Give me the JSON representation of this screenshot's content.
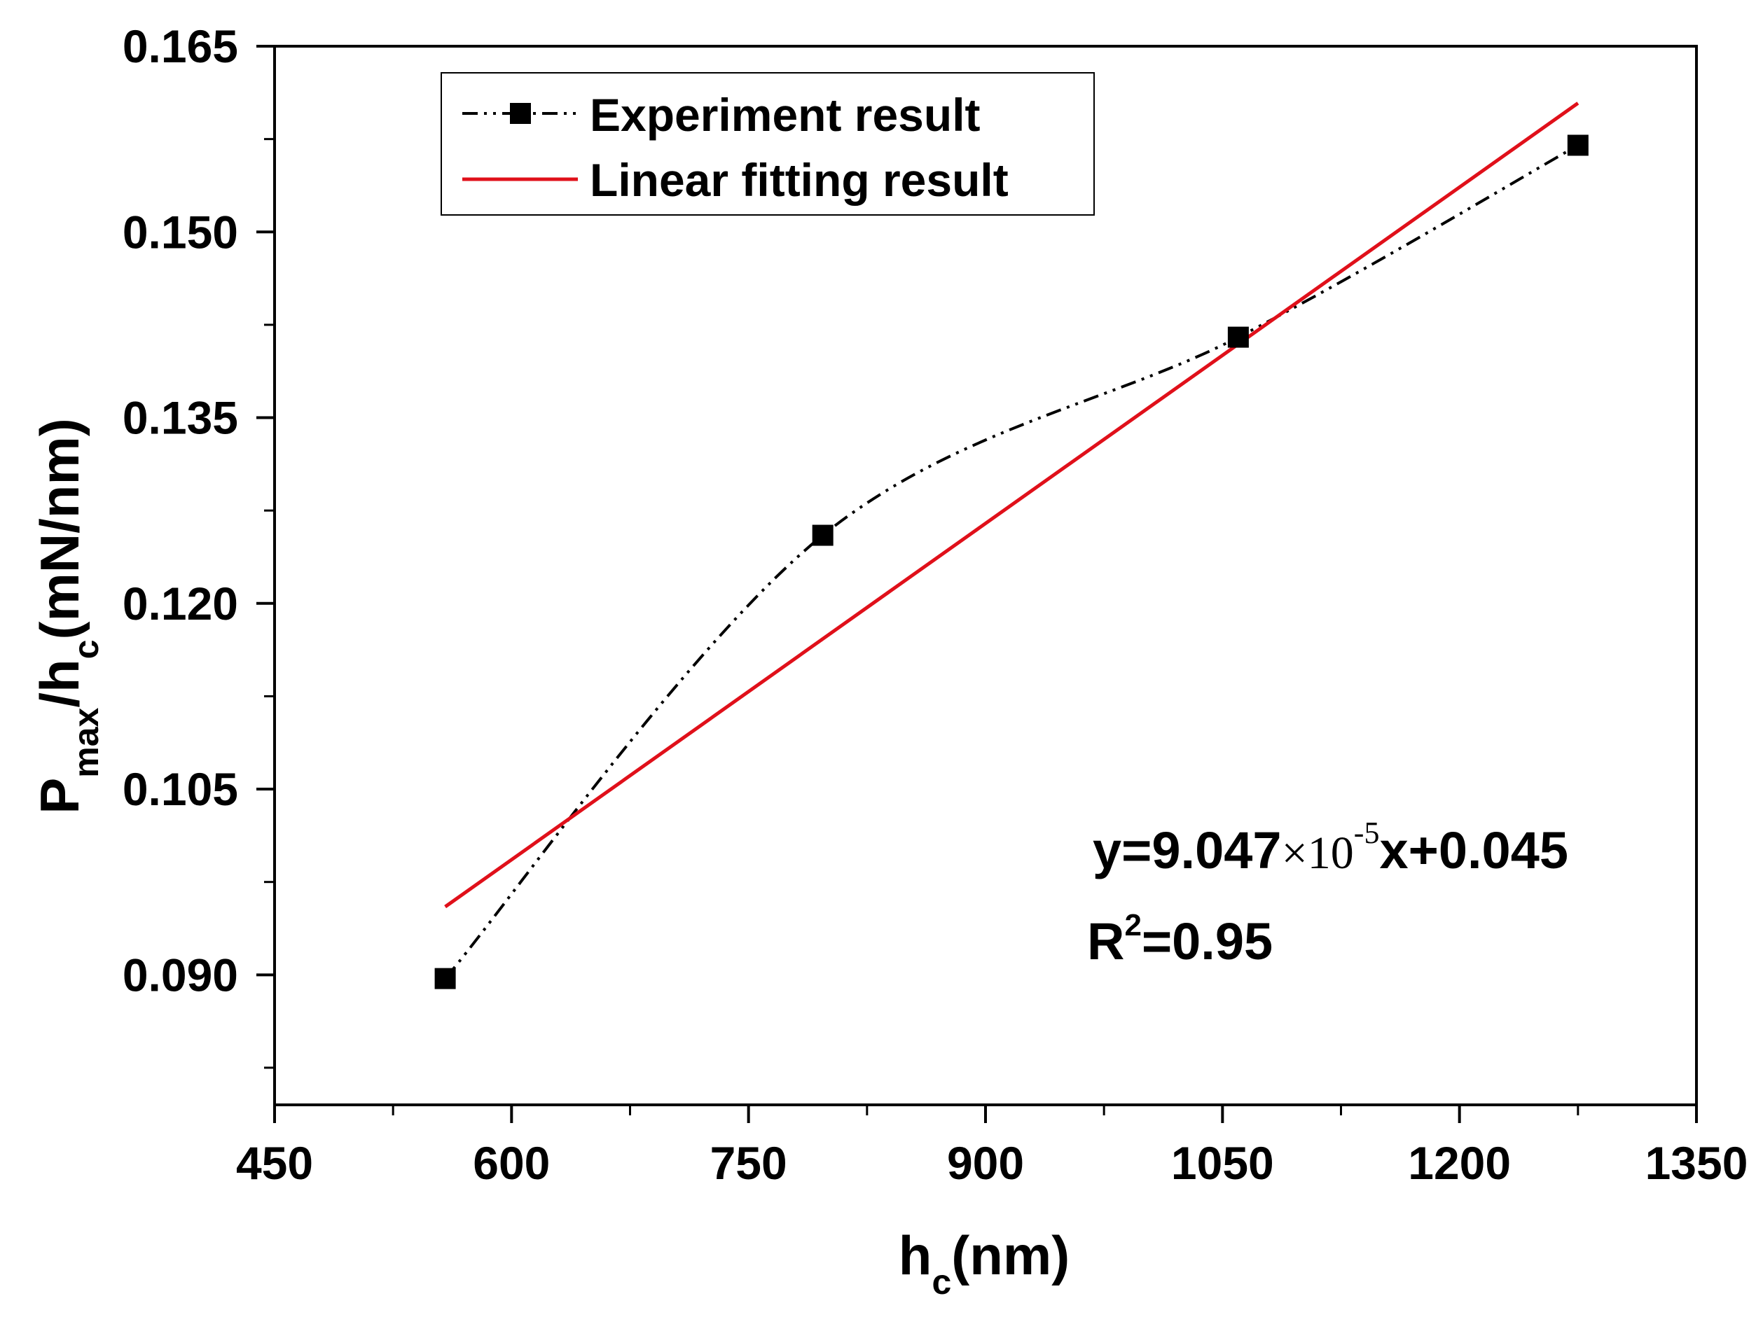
{
  "chart_data": {
    "type": "scatter",
    "xlabel": {
      "main": "h",
      "sub": "c",
      "tail": "(nm)"
    },
    "ylabel": {
      "p": "P",
      "p_sub": "max",
      "mid": "/h",
      "h_sub": "c",
      "tail": "(mN/nm)"
    },
    "xlim": [
      450,
      1350
    ],
    "ylim": [
      0.0795,
      0.165
    ],
    "xticks": [
      450,
      600,
      750,
      900,
      1050,
      1200,
      1350
    ],
    "xtick_labels": [
      "450",
      "600",
      "750",
      "900",
      "1050",
      "1200",
      "1350"
    ],
    "yticks": [
      0.09,
      0.105,
      0.12,
      0.135,
      0.15,
      0.165
    ],
    "ytick_labels": [
      "0.090",
      "0.105",
      "0.120",
      "0.135",
      "0.150",
      "0.165"
    ],
    "series": [
      {
        "name": "Experiment result",
        "style": "dash-dot-dot spline with square markers",
        "color": "#000000",
        "x": [
          558,
          797,
          1060,
          1275
        ],
        "y": [
          0.0897,
          0.1255,
          0.1415,
          0.157
        ]
      },
      {
        "name": "Linear fitting result",
        "style": "solid line",
        "color": "#e0101a",
        "x": [
          558,
          1275
        ],
        "y": [
          0.0955,
          0.1604
        ]
      }
    ],
    "legend": {
      "position": "top-left",
      "entries": [
        "Experiment result",
        "Linear fitting result"
      ]
    },
    "annotations": {
      "equation": {
        "lhs": "y=9.047",
        "times": "×10",
        "exp": "-5",
        "rhs": "x+0.045"
      },
      "r2": {
        "base": "R",
        "exp": "2",
        "value": "=0.95"
      }
    }
  }
}
